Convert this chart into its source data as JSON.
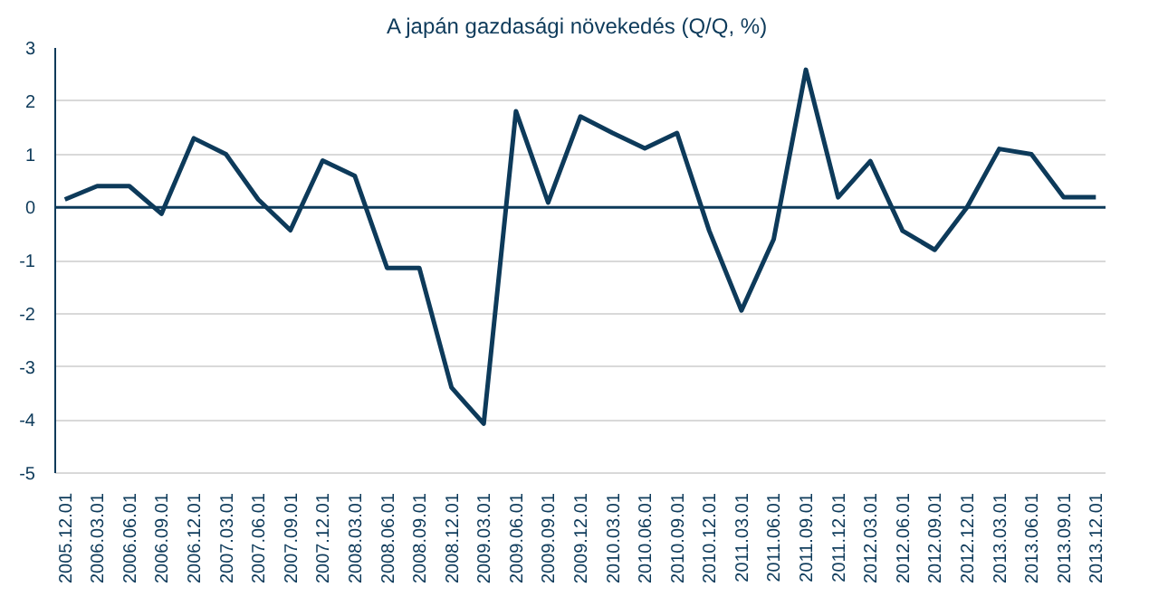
{
  "chart_data": {
    "type": "line",
    "title": "A japán gazdasági növekedés  (Q/Q, %)",
    "categories": [
      "2005.12.01",
      "2006.03.01",
      "2006.06.01",
      "2006.09.01",
      "2006.12.01",
      "2007.03.01",
      "2007.06.01",
      "2007.09.01",
      "2007.12.01",
      "2008.03.01",
      "2008.06.01",
      "2008.09.01",
      "2008.12.01",
      "2009.03.01",
      "2009.06.01",
      "2009.09.01",
      "2009.12.01",
      "2010.03.01",
      "2010.06.01",
      "2010.09.01",
      "2010.12.01",
      "2011.03.01",
      "2011.06.01",
      "2011.09.01",
      "2011.12.01",
      "2012.03.01",
      "2012.06.01",
      "2012.09.01",
      "2012.12.01",
      "2013.03.01",
      "2013.06.01",
      "2013.09.01",
      "2013.12.01"
    ],
    "series": [
      {
        "color": "#0d3a5a",
        "values": [
          0.15,
          0.4,
          0.4,
          -0.12,
          1.3,
          1.0,
          0.15,
          -0.43,
          0.88,
          0.59,
          -1.14,
          -1.14,
          -3.39,
          -4.07,
          1.81,
          0.09,
          1.71,
          1.4,
          1.11,
          1.4,
          -0.44,
          -1.94,
          -0.6,
          2.59,
          0.19,
          0.87,
          -0.44,
          -0.8,
          0.0,
          1.1,
          1.0,
          0.19,
          0.19
        ]
      }
    ],
    "ylim": [
      -5,
      3
    ],
    "yticks": [
      -5,
      -4,
      -3,
      -2,
      -1,
      0,
      1,
      2,
      3
    ],
    "grid": "y",
    "ref_lines": [
      {
        "axis": "y",
        "value": 0,
        "color": "#0d3a5a"
      }
    ]
  }
}
